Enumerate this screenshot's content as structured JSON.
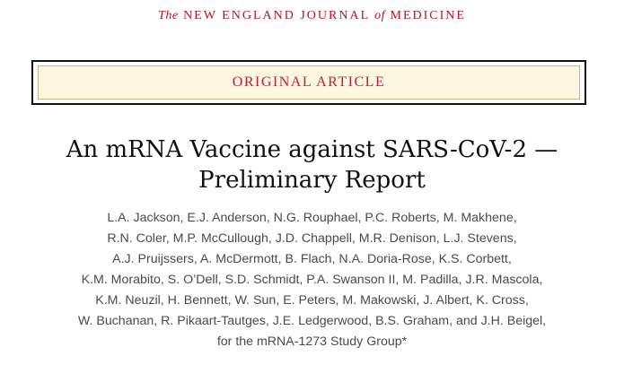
{
  "masthead": {
    "the": "The",
    "new_england_journal": "NEW ENGLAND JOURNAL",
    "of": "of",
    "medicine": "MEDICINE"
  },
  "article_type": "ORIGINAL ARTICLE",
  "title": {
    "line1": "An mRNA Vaccine against SARS-CoV-2 —",
    "line2": "Preliminary Report"
  },
  "authors": [
    "L.A. Jackson, E.J. Anderson, N.G. Rouphael, P.C. Roberts, M. Makhene,",
    "R.N. Coler, M.P. McCullough, J.D. Chappell, M.R. Denison, L.J. Stevens,",
    "A.J. Pruijssers, A. McDermott, B. Flach, N.A. Doria-Rose, K.S. Corbett,",
    "K.M. Morabito, S. O’Dell, S.D. Schmidt, P.A. Swanson II, M. Padilla, J.R. Mascola,",
    "K.M. Neuzil, H. Bennett, W. Sun, E. Peters, M. Makowski, J. Albert, K. Cross,",
    "W. Buchanan, R. Pikaart-Tautges, J.E. Ledgerwood, B.S. Graham, and J.H. Beigel,",
    "for the mRNA-1273 Study Group*"
  ],
  "colors": {
    "masthead": "#b1142a",
    "banner_text": "#c0202f",
    "banner_bg": "#fdf7e1"
  }
}
